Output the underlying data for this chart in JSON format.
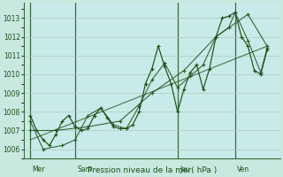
{
  "background_color": "#c8e8e0",
  "plot_bg_color": "#c8eae8",
  "grid_color_major": "#b0c8c0",
  "grid_color_minor": "#c0d8d0",
  "line_color": "#1a5218",
  "title": "Pression niveau de la mer( hPa )",
  "ylim": [
    1005.5,
    1013.8
  ],
  "yticks": [
    1006,
    1007,
    1008,
    1009,
    1010,
    1011,
    1012,
    1013
  ],
  "xlim": [
    0,
    40
  ],
  "day_labels": [
    "Mer",
    "Sam",
    "Jeu",
    "Ven"
  ],
  "day_positions": [
    1,
    8,
    24,
    33
  ],
  "series_zigzag_x": [
    1,
    2,
    3,
    4,
    5,
    6,
    7,
    8,
    9,
    10,
    11,
    12,
    13,
    14,
    15,
    16,
    17,
    18,
    19,
    20,
    21,
    22,
    23,
    24,
    25,
    26,
    27,
    28,
    29,
    30,
    31,
    32,
    33,
    34,
    35,
    36,
    37,
    38
  ],
  "series_zigzag_y": [
    1007.8,
    1007.0,
    1006.5,
    1006.2,
    1006.8,
    1007.5,
    1007.8,
    1007.2,
    1007.0,
    1007.1,
    1007.8,
    1008.2,
    1007.7,
    1007.2,
    1007.1,
    1007.1,
    1007.3,
    1008.0,
    1009.5,
    1010.3,
    1011.5,
    1010.4,
    1009.5,
    1008.0,
    1009.2,
    1010.1,
    1010.5,
    1009.2,
    1010.3,
    1012.0,
    1013.0,
    1013.1,
    1013.3,
    1012.0,
    1011.5,
    1010.2,
    1010.0,
    1011.3
  ],
  "series_smooth_x": [
    1,
    5,
    10,
    15,
    20,
    25,
    30,
    35,
    38
  ],
  "series_smooth_y": [
    1007.0,
    1007.0,
    1007.2,
    1007.5,
    1009.0,
    1010.2,
    1012.0,
    1013.2,
    1011.5
  ],
  "series_trend_x": [
    1,
    38
  ],
  "series_trend_y": [
    1006.5,
    1011.5
  ],
  "series_alt_x": [
    1,
    3,
    6,
    8,
    10,
    12,
    14,
    16,
    18,
    20,
    22,
    24,
    26,
    28,
    30,
    32,
    33,
    35,
    37,
    38
  ],
  "series_alt_y": [
    1007.5,
    1006.0,
    1006.2,
    1006.5,
    1007.8,
    1008.2,
    1007.3,
    1007.1,
    1008.3,
    1009.7,
    1010.6,
    1009.3,
    1009.9,
    1010.5,
    1012.0,
    1012.5,
    1013.3,
    1011.8,
    1010.1,
    1011.4
  ]
}
